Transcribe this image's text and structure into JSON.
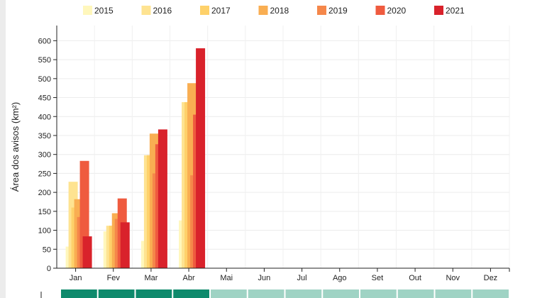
{
  "chart_data": {
    "type": "bar",
    "ylabel": "Área dos avisos (km²)",
    "ylim": [
      0,
      640
    ],
    "yticks": [
      0,
      50,
      100,
      150,
      200,
      250,
      300,
      350,
      400,
      450,
      500,
      550,
      600
    ],
    "grid": true,
    "legend_position": "top",
    "categories": [
      "Jan",
      "Fev",
      "Mar",
      "Abr",
      "Mai",
      "Jun",
      "Jul",
      "Ago",
      "Set",
      "Out",
      "Nov",
      "Dez"
    ],
    "series": [
      {
        "name": "2015",
        "color": "#fff7bc",
        "values": [
          57,
          97,
          72,
          126,
          null,
          null,
          null,
          null,
          null,
          null,
          null,
          null
        ]
      },
      {
        "name": "2016",
        "color": "#fee391",
        "values": [
          228,
          112,
          298,
          438,
          null,
          null,
          null,
          null,
          null,
          null,
          null,
          null
        ]
      },
      {
        "name": "2017",
        "color": "#fed16a",
        "values": [
          160,
          112,
          298,
          438,
          null,
          null,
          null,
          null,
          null,
          null,
          null,
          null
        ]
      },
      {
        "name": "2018",
        "color": "#f9ae52",
        "values": [
          182,
          145,
          355,
          488,
          null,
          null,
          null,
          null,
          null,
          null,
          null,
          null
        ]
      },
      {
        "name": "2019",
        "color": "#f5874a",
        "values": [
          135,
          130,
          250,
          245,
          null,
          null,
          null,
          null,
          null,
          null,
          null,
          null
        ]
      },
      {
        "name": "2020",
        "color": "#ef5b3f",
        "values": [
          283,
          184,
          327,
          405,
          null,
          null,
          null,
          null,
          null,
          null,
          null,
          null
        ]
      },
      {
        "name": "2021",
        "color": "#d9222b",
        "values": [
          84,
          121,
          366,
          580,
          null,
          null,
          null,
          null,
          null,
          null,
          null,
          null
        ]
      }
    ],
    "month_status": [
      1,
      1,
      1,
      1,
      0,
      0,
      0,
      0,
      0,
      0,
      0,
      0
    ],
    "status_colors": {
      "active": "#0e8a6c",
      "inactive": "#9fd3c4"
    }
  }
}
